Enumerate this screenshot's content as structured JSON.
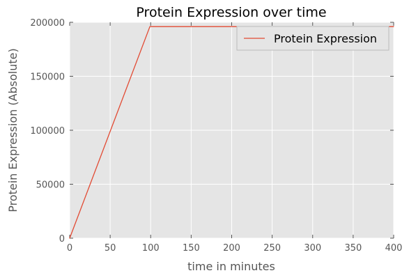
{
  "chart_data": {
    "type": "line",
    "title": "Protein Expression over time",
    "xlabel": "time in minutes",
    "ylabel": "Protein Expression (Absolute)",
    "xlim": [
      0,
      400
    ],
    "ylim": [
      0,
      200000
    ],
    "xticks": [
      "0",
      "50",
      "100",
      "150",
      "200",
      "250",
      "300",
      "350",
      "400"
    ],
    "yticks": [
      "0",
      "50000",
      "100000",
      "150000",
      "200000"
    ],
    "grid": true,
    "legend_position": "top-right",
    "series": [
      {
        "name": "Protein Expression",
        "color": "#e24a33",
        "x": [
          0,
          99,
          400
        ],
        "y": [
          0,
          196000,
          196000
        ]
      }
    ],
    "style": {
      "background": "#e5e5e5",
      "grid_color": "#ffffff",
      "tick_color": "#555555"
    }
  }
}
